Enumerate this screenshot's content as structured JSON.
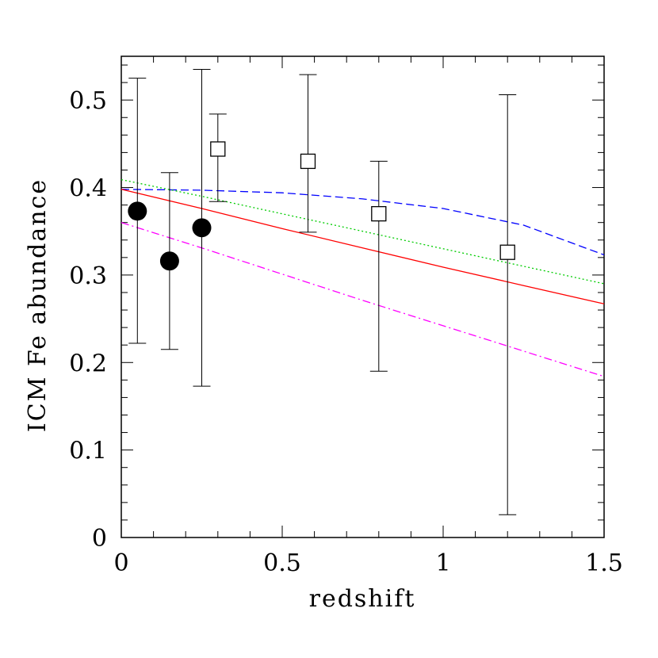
{
  "chart_data": {
    "type": "scatter",
    "xlabel": "redshift",
    "ylabel": "ICM Fe abundance",
    "xlim": [
      0,
      1.5
    ],
    "ylim": [
      0,
      0.55
    ],
    "x_ticks": [
      {
        "value": 0,
        "label": "0"
      },
      {
        "value": 0.5,
        "label": "0.5"
      },
      {
        "value": 1,
        "label": "1"
      },
      {
        "value": 1.5,
        "label": "1.5"
      }
    ],
    "y_ticks": [
      {
        "value": 0,
        "label": "0"
      },
      {
        "value": 0.1,
        "label": "0.1"
      },
      {
        "value": 0.2,
        "label": "0.2"
      },
      {
        "value": 0.3,
        "label": "0.3"
      },
      {
        "value": 0.4,
        "label": "0.4"
      },
      {
        "value": 0.5,
        "label": "0.5"
      }
    ],
    "x_minor_step": 0.1,
    "y_minor_step": 0.02,
    "grid": false,
    "legend": "none",
    "series": [
      {
        "marker": "filled-circle",
        "color": "#000000",
        "points": [
          {
            "x": 0.05,
            "y": 0.373,
            "err_low": 0.222,
            "err_high": 0.525
          },
          {
            "x": 0.15,
            "y": 0.316,
            "err_low": 0.215,
            "err_high": 0.417
          },
          {
            "x": 0.25,
            "y": 0.354,
            "err_low": 0.173,
            "err_high": 0.535
          }
        ]
      },
      {
        "marker": "open-square",
        "color": "#000000",
        "points": [
          {
            "x": 0.3,
            "y": 0.444,
            "err_low": 0.384,
            "err_high": 0.484
          },
          {
            "x": 0.58,
            "y": 0.43,
            "err_low": 0.349,
            "err_high": 0.529
          },
          {
            "x": 0.8,
            "y": 0.37,
            "err_low": 0.19,
            "err_high": 0.43
          },
          {
            "x": 1.2,
            "y": 0.326,
            "err_low": 0.026,
            "err_high": 0.506
          }
        ]
      }
    ],
    "curves": [
      {
        "style": "dashed",
        "color": "#0000ff",
        "x": [
          0,
          0.25,
          0.5,
          0.75,
          1.0,
          1.25,
          1.5
        ],
        "y": [
          0.398,
          0.397,
          0.394,
          0.387,
          0.376,
          0.357,
          0.323
        ]
      },
      {
        "style": "dotted",
        "color": "#00cc00",
        "x": [
          0,
          0.25,
          0.5,
          0.75,
          1.0,
          1.25,
          1.5
        ],
        "y": [
          0.409,
          0.39,
          0.37,
          0.35,
          0.33,
          0.31,
          0.29
        ]
      },
      {
        "style": "solid",
        "color": "#ff0000",
        "x": [
          0,
          0.25,
          0.5,
          0.75,
          1.0,
          1.25,
          1.5
        ],
        "y": [
          0.398,
          0.376,
          0.353,
          0.331,
          0.309,
          0.288,
          0.267
        ]
      },
      {
        "style": "dash-dot",
        "color": "#ff00ff",
        "x": [
          0,
          0.25,
          0.5,
          0.75,
          1.0,
          1.25,
          1.5
        ],
        "y": [
          0.36,
          0.331,
          0.301,
          0.271,
          0.242,
          0.213,
          0.184
        ]
      }
    ]
  }
}
